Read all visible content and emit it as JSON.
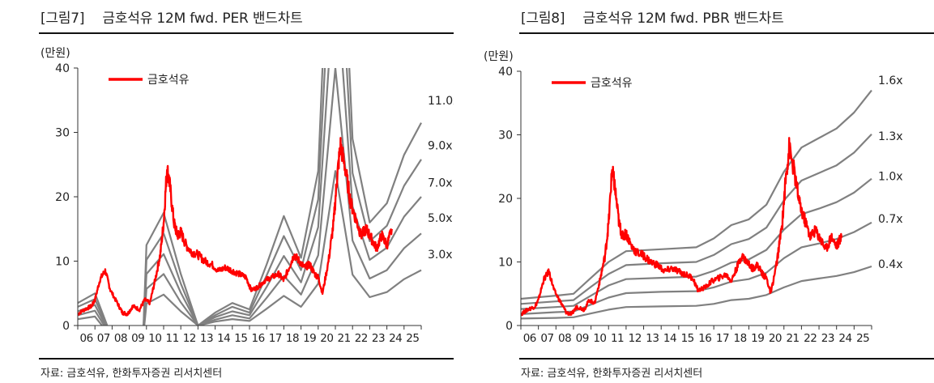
{
  "chart_data": [
    {
      "type": "line",
      "fig_number": "[그림7]",
      "title": "금호석유 12M fwd. PER 밴드차트",
      "unit_label": "(만원)",
      "source": "자료: 금호석유, 한화투자증권 리서치센터",
      "ylim": [
        0,
        40
      ],
      "yticks": [
        0,
        10,
        20,
        30,
        40
      ],
      "xlim": [
        2006,
        2026
      ],
      "xticks": [
        "06",
        "07",
        "08",
        "09",
        "10",
        "11",
        "12",
        "13",
        "14",
        "15",
        "16",
        "17",
        "18",
        "19",
        "20",
        "21",
        "22",
        "23",
        "24",
        "25"
      ],
      "legend": "금호석유",
      "legend_position": "top-left",
      "grid": false,
      "colors": {
        "price": "#ff0000",
        "band": "#808080",
        "axis": "#333333"
      },
      "price_series": {
        "name": "금호석유",
        "x": [
          2006.0,
          2006.4,
          2006.8,
          2007.0,
          2007.3,
          2007.6,
          2007.9,
          2008.3,
          2008.6,
          2008.9,
          2009.2,
          2009.6,
          2009.9,
          2010.2,
          2010.5,
          2010.8,
          2011.0,
          2011.2,
          2011.35,
          2011.6,
          2011.8,
          2012.0,
          2012.3,
          2012.6,
          2013.0,
          2013.4,
          2013.8,
          2014.2,
          2014.6,
          2015.0,
          2015.4,
          2015.8,
          2016.1,
          2016.5,
          2016.9,
          2017.3,
          2017.7,
          2018.0,
          2018.3,
          2018.6,
          2018.9,
          2019.2,
          2019.5,
          2019.8,
          2020.0,
          2020.25,
          2020.6,
          2020.9,
          2021.1,
          2021.3,
          2021.6,
          2021.9,
          2022.2,
          2022.5,
          2022.8,
          2023.1,
          2023.4,
          2023.7,
          2024.0,
          2024.3
        ],
        "y": [
          1.8,
          2.5,
          3.0,
          4.0,
          7.2,
          8.5,
          5.5,
          3.5,
          2.0,
          1.8,
          3.0,
          2.5,
          4.0,
          3.5,
          7.0,
          11.0,
          16.0,
          24.5,
          22.0,
          16.0,
          14.0,
          14.5,
          12.5,
          11.5,
          11.0,
          10.0,
          9.5,
          8.5,
          9.0,
          8.5,
          8.0,
          7.5,
          5.5,
          6.0,
          7.0,
          7.5,
          8.0,
          7.0,
          9.0,
          11.0,
          10.0,
          9.0,
          9.5,
          8.0,
          7.5,
          5.0,
          10.0,
          16.0,
          23.0,
          28.0,
          24.0,
          19.0,
          16.5,
          14.0,
          15.0,
          13.5,
          12.0,
          14.0,
          12.5,
          15.0
        ]
      },
      "bands": [
        {
          "label": "11.0x",
          "x": [
            2006,
            2007,
            2008,
            2009,
            2009.8,
            2010,
            2011,
            2012,
            2013,
            2014,
            2015,
            2016,
            2017,
            2018,
            2019,
            2020,
            2021,
            2022,
            2023,
            2024,
            2025,
            2026
          ],
          "y": [
            3.5,
            5.0,
            -2.0,
            -2.0,
            -2.0,
            12.5,
            17.5,
            8.0,
            0.0,
            2.0,
            3.5,
            2.5,
            9.5,
            17.0,
            10.5,
            24.0,
            88.0,
            29.0,
            16.0,
            19.0,
            26.5,
            31.5
          ]
        },
        {
          "label": "9.0x",
          "x": [
            2006,
            2007,
            2008,
            2009,
            2009.8,
            2010,
            2011,
            2012,
            2013,
            2014,
            2015,
            2016,
            2017,
            2018,
            2019,
            2020,
            2021,
            2022,
            2023,
            2024,
            2025,
            2026
          ],
          "y": [
            2.9,
            4.1,
            -2.0,
            -2.0,
            -2.0,
            10.2,
            14.3,
            6.5,
            0.0,
            1.6,
            2.9,
            2.0,
            7.8,
            13.9,
            8.6,
            19.6,
            72.0,
            23.7,
            13.1,
            15.5,
            21.7,
            25.8
          ]
        },
        {
          "label": "7.0x",
          "x": [
            2006,
            2007,
            2008,
            2009,
            2009.8,
            2010,
            2011,
            2012,
            2013,
            2014,
            2015,
            2016,
            2017,
            2018,
            2019,
            2020,
            2021,
            2022,
            2023,
            2024,
            2025,
            2026
          ],
          "y": [
            2.2,
            3.2,
            -2.0,
            -2.0,
            -2.0,
            8.0,
            11.1,
            5.1,
            0.0,
            1.3,
            2.2,
            1.6,
            6.0,
            10.8,
            6.7,
            15.3,
            56.0,
            18.5,
            10.2,
            12.1,
            16.9,
            20.0
          ]
        },
        {
          "label": "5.0x",
          "x": [
            2006,
            2007,
            2008,
            2009,
            2009.8,
            2010,
            2011,
            2012,
            2013,
            2014,
            2015,
            2016,
            2017,
            2018,
            2019,
            2020,
            2021,
            2022,
            2023,
            2024,
            2025,
            2026
          ],
          "y": [
            1.6,
            2.3,
            -2.0,
            -2.0,
            -2.0,
            5.7,
            8.0,
            3.6,
            0.0,
            0.9,
            1.6,
            1.1,
            4.3,
            7.7,
            4.8,
            10.9,
            40.0,
            13.2,
            7.3,
            8.6,
            12.0,
            14.3
          ]
        },
        {
          "label": "3.0x",
          "x": [
            2006,
            2007,
            2008,
            2009,
            2009.8,
            2010,
            2011,
            2012,
            2013,
            2014,
            2015,
            2016,
            2017,
            2018,
            2019,
            2020,
            2021,
            2022,
            2023,
            2024,
            2025,
            2026
          ],
          "y": [
            1.0,
            1.4,
            -2.0,
            -2.0,
            -2.0,
            3.4,
            4.8,
            2.2,
            0.0,
            0.6,
            1.0,
            0.7,
            2.6,
            4.6,
            2.9,
            6.5,
            24.0,
            7.9,
            4.4,
            5.2,
            7.2,
            8.6
          ]
        }
      ],
      "band_labels_y": [
        35,
        28,
        22.2,
        16.7,
        11.1
      ]
    },
    {
      "type": "line",
      "fig_number": "[그림8]",
      "title": "금호석유 12M fwd. PBR 밴드차트",
      "unit_label": "(만원)",
      "source": "자료: 금호석유, 한화투자증권 리서치센터",
      "ylim": [
        0,
        40
      ],
      "yticks": [
        0,
        10,
        20,
        30,
        40
      ],
      "xlim": [
        2006,
        2026
      ],
      "xticks": [
        "06",
        "07",
        "08",
        "09",
        "10",
        "11",
        "12",
        "13",
        "14",
        "15",
        "16",
        "17",
        "18",
        "19",
        "20",
        "21",
        "22",
        "23",
        "24",
        "25"
      ],
      "legend": "금호석유",
      "legend_position": "top-left",
      "grid": false,
      "colors": {
        "price": "#ff0000",
        "band": "#808080",
        "axis": "#333333"
      },
      "price_series": {
        "name": "금호석유",
        "x": [
          2006.0,
          2006.4,
          2006.8,
          2007.0,
          2007.3,
          2007.6,
          2007.9,
          2008.3,
          2008.6,
          2008.9,
          2009.2,
          2009.6,
          2009.9,
          2010.2,
          2010.5,
          2010.8,
          2011.0,
          2011.2,
          2011.35,
          2011.6,
          2011.8,
          2012.0,
          2012.3,
          2012.6,
          2013.0,
          2013.4,
          2013.8,
          2014.2,
          2014.6,
          2015.0,
          2015.4,
          2015.8,
          2016.1,
          2016.5,
          2016.9,
          2017.3,
          2017.7,
          2018.0,
          2018.3,
          2018.6,
          2018.9,
          2019.2,
          2019.5,
          2019.8,
          2020.0,
          2020.25,
          2020.6,
          2020.9,
          2021.1,
          2021.3,
          2021.6,
          2021.9,
          2022.2,
          2022.5,
          2022.8,
          2023.1,
          2023.4,
          2023.7,
          2024.0,
          2024.3
        ],
        "y": [
          1.8,
          2.5,
          3.0,
          4.0,
          7.2,
          8.5,
          5.5,
          3.5,
          2.0,
          1.8,
          3.0,
          2.5,
          4.0,
          3.5,
          7.0,
          11.0,
          16.0,
          24.5,
          22.0,
          16.0,
          14.0,
          14.5,
          12.5,
          11.5,
          11.0,
          10.0,
          9.5,
          8.5,
          9.0,
          8.5,
          8.0,
          7.5,
          5.5,
          6.0,
          7.0,
          7.5,
          8.0,
          7.0,
          9.0,
          11.0,
          10.0,
          9.0,
          9.5,
          8.0,
          7.5,
          5.0,
          10.0,
          16.0,
          23.0,
          28.0,
          24.0,
          19.0,
          16.5,
          14.0,
          15.0,
          13.5,
          12.0,
          14.0,
          12.5,
          14.0
        ]
      },
      "bands": [
        {
          "label": "1.6x",
          "x": [
            2006,
            2008,
            2009,
            2010,
            2011,
            2012,
            2014,
            2016,
            2017,
            2018,
            2019,
            2020,
            2021,
            2022,
            2023,
            2024,
            2025,
            2026
          ],
          "y": [
            4.2,
            4.7,
            5.0,
            7.5,
            10.0,
            11.7,
            12.0,
            12.3,
            13.7,
            15.8,
            16.7,
            19.0,
            24.2,
            28.0,
            29.5,
            31.0,
            33.5,
            37.0
          ]
        },
        {
          "label": "1.3x",
          "x": [
            2006,
            2008,
            2009,
            2010,
            2011,
            2012,
            2014,
            2016,
            2017,
            2018,
            2019,
            2020,
            2021,
            2022,
            2023,
            2024,
            2025,
            2026
          ],
          "y": [
            3.4,
            3.8,
            4.0,
            6.1,
            8.1,
            9.5,
            9.8,
            10.0,
            11.1,
            12.8,
            13.6,
            15.4,
            19.7,
            22.8,
            24.0,
            25.2,
            27.2,
            30.1
          ]
        },
        {
          "label": "1.0x",
          "x": [
            2006,
            2008,
            2009,
            2010,
            2011,
            2012,
            2014,
            2016,
            2017,
            2018,
            2019,
            2020,
            2021,
            2022,
            2023,
            2024,
            2025,
            2026
          ],
          "y": [
            2.6,
            2.9,
            3.1,
            4.7,
            6.3,
            7.3,
            7.5,
            7.7,
            8.6,
            9.9,
            10.4,
            11.9,
            15.1,
            17.5,
            18.4,
            19.4,
            20.9,
            23.1
          ]
        },
        {
          "label": "0.7x",
          "x": [
            2006,
            2008,
            2009,
            2010,
            2011,
            2012,
            2014,
            2016,
            2017,
            2018,
            2019,
            2020,
            2021,
            2022,
            2023,
            2024,
            2025,
            2026
          ],
          "y": [
            1.8,
            2.1,
            2.2,
            3.3,
            4.4,
            5.1,
            5.3,
            5.4,
            6.0,
            6.9,
            7.3,
            8.3,
            10.6,
            12.3,
            12.9,
            13.6,
            14.7,
            16.2
          ]
        },
        {
          "label": "0.4x",
          "x": [
            2006,
            2008,
            2009,
            2010,
            2011,
            2012,
            2014,
            2016,
            2017,
            2018,
            2019,
            2020,
            2021,
            2022,
            2023,
            2024,
            2025,
            2026
          ],
          "y": [
            1.1,
            1.2,
            1.3,
            1.9,
            2.5,
            2.9,
            3.0,
            3.1,
            3.4,
            4.0,
            4.2,
            4.8,
            6.0,
            7.0,
            7.4,
            7.8,
            8.4,
            9.3
          ]
        }
      ],
      "band_labels_y": [
        38.6,
        29.8,
        23.5,
        16.8,
        9.7
      ]
    }
  ]
}
